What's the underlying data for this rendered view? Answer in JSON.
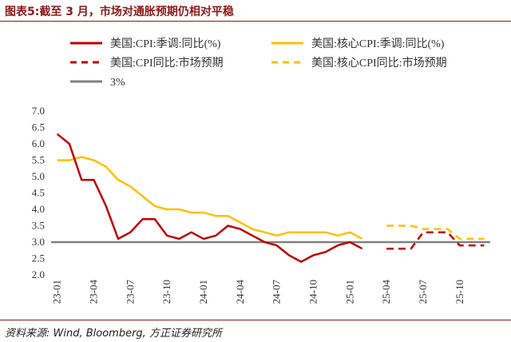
{
  "figure": {
    "title": "图表5:截至 3 月，市场对通胀预期仍相对平稳",
    "source": "资料来源: Wind, Bloomberg, 方正证券研究所"
  },
  "colors": {
    "red": "#c00000",
    "yellow": "#ffc000",
    "gray": "#808080",
    "title": "#8b1a1a"
  },
  "chart_data": {
    "type": "line",
    "title": "",
    "xlabel": "",
    "ylabel": "",
    "ylim": [
      2.0,
      7.0
    ],
    "y_ticks": [
      "2.0",
      "2.5",
      "3.0",
      "3.5",
      "4.0",
      "4.5",
      "5.0",
      "5.5",
      "6.0",
      "6.5",
      "7.0"
    ],
    "x_ticks": [
      "23-01",
      "23-04",
      "23-07",
      "23-10",
      "24-01",
      "24-04",
      "24-07",
      "24-10",
      "25-01",
      "25-04",
      "25-07",
      "25-10"
    ],
    "x_start": "23-01",
    "x_end": "25-12",
    "grid": false,
    "legend_position": "top",
    "series": [
      {
        "name": "美国:CPI:季调:同比(%)",
        "color": "#c00000",
        "style": "solid",
        "x": [
          "23-01",
          "23-02",
          "23-03",
          "23-04",
          "23-05",
          "23-06",
          "23-07",
          "23-08",
          "23-09",
          "23-10",
          "23-11",
          "23-12",
          "24-01",
          "24-02",
          "24-03",
          "24-04",
          "24-05",
          "24-06",
          "24-07",
          "24-08",
          "24-09",
          "24-10",
          "24-11",
          "24-12",
          "25-01",
          "25-02"
        ],
        "values": [
          6.3,
          6.0,
          4.9,
          4.9,
          4.1,
          3.1,
          3.3,
          3.7,
          3.7,
          3.2,
          3.1,
          3.3,
          3.1,
          3.2,
          3.5,
          3.4,
          3.2,
          3.0,
          2.9,
          2.6,
          2.4,
          2.6,
          2.7,
          2.9,
          3.0,
          2.8
        ]
      },
      {
        "name": "美国:核心CPI:季调:同比(%)",
        "color": "#ffc000",
        "style": "solid",
        "x": [
          "23-01",
          "23-02",
          "23-03",
          "23-04",
          "23-05",
          "23-06",
          "23-07",
          "23-08",
          "23-09",
          "23-10",
          "23-11",
          "23-12",
          "24-01",
          "24-02",
          "24-03",
          "24-04",
          "24-05",
          "24-06",
          "24-07",
          "24-08",
          "24-09",
          "24-10",
          "24-11",
          "24-12",
          "25-01",
          "25-02"
        ],
        "values": [
          5.5,
          5.5,
          5.6,
          5.5,
          5.3,
          4.9,
          4.7,
          4.4,
          4.1,
          4.0,
          4.0,
          3.9,
          3.9,
          3.8,
          3.8,
          3.6,
          3.4,
          3.3,
          3.2,
          3.3,
          3.3,
          3.3,
          3.3,
          3.2,
          3.3,
          3.1
        ]
      },
      {
        "name": "美国:CPI同比:市场预期",
        "color": "#c00000",
        "style": "dashed",
        "x": [
          "25-04",
          "25-05",
          "25-06",
          "25-07",
          "25-08",
          "25-09",
          "25-10",
          "25-11",
          "25-12"
        ],
        "values": [
          2.8,
          2.8,
          2.8,
          3.3,
          3.3,
          3.3,
          2.9,
          2.9,
          2.9
        ]
      },
      {
        "name": "美国:核心CPI同比:市场预期",
        "color": "#ffc000",
        "style": "dashed",
        "x": [
          "25-04",
          "25-05",
          "25-06",
          "25-07",
          "25-08",
          "25-09",
          "25-10",
          "25-11",
          "25-12"
        ],
        "values": [
          3.5,
          3.5,
          3.5,
          3.4,
          3.4,
          3.4,
          3.1,
          3.1,
          3.1
        ]
      },
      {
        "name": "3%",
        "color": "#808080",
        "style": "solid",
        "x": [
          "23-01",
          "25-12"
        ],
        "values": [
          3.0,
          3.0
        ]
      }
    ]
  }
}
